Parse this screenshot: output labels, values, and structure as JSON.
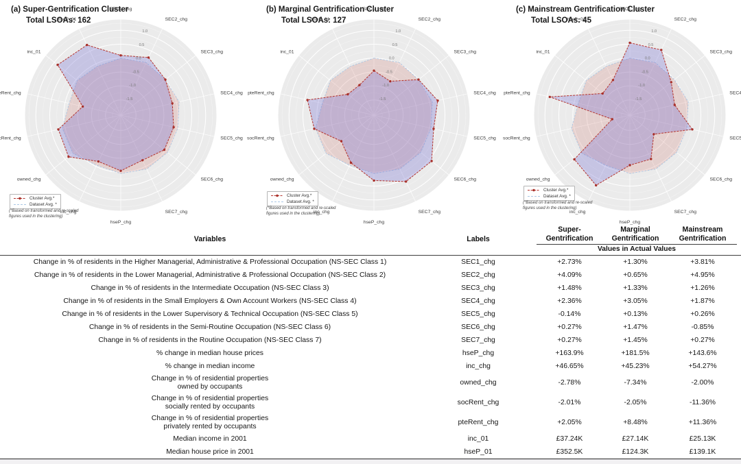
{
  "chart_data": {
    "type": "radar",
    "axes": [
      "SEC1_chg",
      "SEC2_chg",
      "SEC3_chg",
      "SEC4_chg",
      "SEC5_chg",
      "SEC6_chg",
      "SEC7_chg",
      "hseP_chg",
      "inc_chg",
      "owned_chg",
      "socRent_chg",
      "pteRent_chg",
      "inc_01",
      "hseP_01"
    ],
    "radial_ticks": [
      1.0,
      0.5,
      0.0,
      -0.5,
      -1.0,
      -1.5
    ],
    "radial_range": [
      -2.05,
      1.4
    ],
    "grid": true,
    "value_scale_note": "Values on transformed and re-scaled figures used in the clustering",
    "charts": [
      {
        "id": "a",
        "title": "(a) Super-Gentrification Cluster",
        "subtitle": "Total LSOAs: 162",
        "total_lsoas": 162,
        "series": [
          {
            "name": "Cluster Avg.*",
            "values": [
              0.1,
              0.25,
              0.0,
              -0.15,
              -0.1,
              -0.05,
              -0.25,
              -0.05,
              -0.2,
              0.35,
              0.25,
              -0.65,
              0.85,
              0.75
            ]
          },
          {
            "name": "Dataset Avg. *",
            "values": [
              0.0,
              0.05,
              0.0,
              0.1,
              0.05,
              0.1,
              0.1,
              0.05,
              -0.05,
              0.15,
              0.1,
              -0.15,
              -0.05,
              -0.1
            ]
          }
        ]
      },
      {
        "id": "b",
        "title": "(b) Marginal Gentrification Cluster",
        "subtitle": "Total LSOAs: 127",
        "total_lsoas": 127,
        "series": [
          {
            "name": "Cluster Avg.*",
            "values": [
              -0.45,
              -0.7,
              0.0,
              0.3,
              0.15,
              0.6,
              0.6,
              0.3,
              -0.15,
              -0.55,
              0.15,
              0.4,
              -0.85,
              -0.85
            ]
          },
          {
            "name": "Dataset Avg. *",
            "values": [
              0.0,
              0.05,
              0.0,
              0.1,
              0.05,
              0.1,
              0.1,
              0.05,
              -0.05,
              0.15,
              0.1,
              -0.15,
              -0.05,
              -0.1
            ]
          }
        ]
      },
      {
        "id": "c",
        "title": "(c) Mainstream Gentrification Cluster",
        "subtitle": "Total LSOAs: 45",
        "total_lsoas": 45,
        "series": [
          {
            "name": "Cluster Avg.*",
            "values": [
              0.55,
              0.55,
              -0.15,
              -0.4,
              0.25,
              -0.95,
              -0.3,
              -0.25,
              0.75,
              0.5,
              -1.4,
              0.9,
              -0.8,
              -0.65
            ]
          },
          {
            "name": "Dataset Avg. *",
            "values": [
              0.0,
              0.05,
              0.0,
              0.1,
              0.05,
              0.1,
              0.1,
              0.05,
              -0.05,
              0.15,
              0.1,
              -0.15,
              -0.05,
              -0.1
            ]
          }
        ]
      }
    ],
    "colors": {
      "cluster_line": "#b5332c",
      "cluster_marker": "#a8302a",
      "cluster_fill": "rgba(112,105,210,0.30)",
      "dataset_line": "#a9c6e4",
      "dataset_fill": "rgba(205,112,105,0.22)",
      "disk": "#ebebeb",
      "gridline": "#ffffff"
    }
  },
  "legend": {
    "cluster_label": "Cluster Avg.*",
    "dataset_label": "Dataset Avg. *"
  },
  "footnote": {
    "line1": "(*Based on transformed and re-scaled",
    "line2": "figures used in the clustering)"
  },
  "table": {
    "header": {
      "variables": "Variables",
      "labels": "Labels",
      "clusters": [
        "Super-Gentrification",
        "Marginal Gentrification",
        "Mainstream Gentrification"
      ],
      "values_subheader": "Values in Actual Values"
    },
    "rows": [
      {
        "variable": [
          "Change in % of residents in the Higher Managerial, Administrative & Professional Occupation (NS-SEC Class 1)"
        ],
        "label": "SEC1_chg",
        "values": [
          "+2.73%",
          "+1.30%",
          "+3.81%"
        ]
      },
      {
        "variable": [
          "Change in % of residents in the Lower Managerial, Administrative & Professional Occupation (NS-SEC Class 2)"
        ],
        "label": "SEC2_chg",
        "values": [
          "+4.09%",
          "+0.65%",
          "+4.95%"
        ]
      },
      {
        "variable": [
          "Change in % of residents in the Intermediate Occupation (NS-SEC Class 3)"
        ],
        "label": "SEC3_chg",
        "values": [
          "+1.48%",
          "+1.33%",
          "+1.26%"
        ]
      },
      {
        "variable": [
          "Change in % of residents in the Small Employers & Own Account Workers (NS-SEC Class 4)"
        ],
        "label": "SEC4_chg",
        "values": [
          "+2.36%",
          "+3.05%",
          "+1.87%"
        ]
      },
      {
        "variable": [
          "Change in % of residents in the Lower Supervisory & Technical Occupation (NS-SEC Class 5)"
        ],
        "label": "SEC5_chg",
        "values": [
          "-0.14%",
          "+0.13%",
          "+0.26%"
        ]
      },
      {
        "variable": [
          "Change in % of residents in the Semi-Routine Occupation (NS-SEC Class 6)"
        ],
        "label": "SEC6_chg",
        "values": [
          "+0.27%",
          "+1.47%",
          "-0.85%"
        ]
      },
      {
        "variable": [
          "Change in % of residents in the Routine Occupation (NS-SEC Class 7)"
        ],
        "label": "SEC7_chg",
        "values": [
          "+0.27%",
          "+1.45%",
          "+0.27%"
        ]
      },
      {
        "variable": [
          "% change in median house prices"
        ],
        "label": "hseP_chg",
        "values": [
          "+163.9%",
          "+181.5%",
          "+143.6%"
        ]
      },
      {
        "variable": [
          "% change in median income"
        ],
        "label": "inc_chg",
        "values": [
          "+46.65%",
          "+45.23%",
          "+54.27%"
        ]
      },
      {
        "variable": [
          "Change in % of residential properties",
          "owned by occupants"
        ],
        "label": "owned_chg",
        "values": [
          "-2.78%",
          "-7.34%",
          "-2.00%"
        ]
      },
      {
        "variable": [
          "Change in % of residential properties",
          "socially rented by occupants"
        ],
        "label": "socRent_chg",
        "values": [
          "-2.01%",
          "-2.05%",
          "-11.36%"
        ]
      },
      {
        "variable": [
          "Change in % of residential properties",
          "privately rented by occupants"
        ],
        "label": "pteRent_chg",
        "values": [
          "+2.05%",
          "+8.48%",
          "+11.36%"
        ]
      },
      {
        "variable": [
          "Median income in 2001"
        ],
        "label": "inc_01",
        "values": [
          "£37.24K",
          "£27.14K",
          "£25.13K"
        ]
      },
      {
        "variable": [
          "Median house price in 2001"
        ],
        "label": "hseP_01",
        "values": [
          "£352.5K",
          "£124.3K",
          "£139.1K"
        ]
      }
    ]
  }
}
